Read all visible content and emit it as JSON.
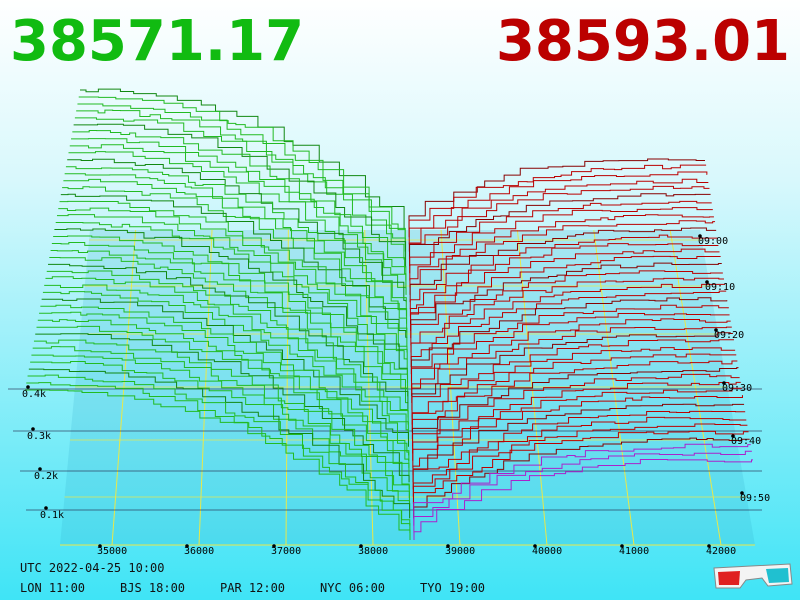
{
  "header": {
    "bid": "38571.17",
    "ask": "38593.01"
  },
  "price_axis": [
    "35000",
    "36000",
    "37000",
    "38000",
    "39000",
    "40000",
    "41000",
    "42000"
  ],
  "depth_axis": [
    "0.1k",
    "0.2k",
    "0.3k",
    "0.4k"
  ],
  "time_axis": [
    "09:00",
    "09:10",
    "09:20",
    "09:30",
    "09:40",
    "09:50"
  ],
  "footer": {
    "utc": "UTC 2022-04-25 10:00",
    "clocks": [
      "LON 11:00",
      "BJS 18:00",
      "PAR 12:00",
      "NYC 06:00",
      "TYO 19:00"
    ]
  }
}
